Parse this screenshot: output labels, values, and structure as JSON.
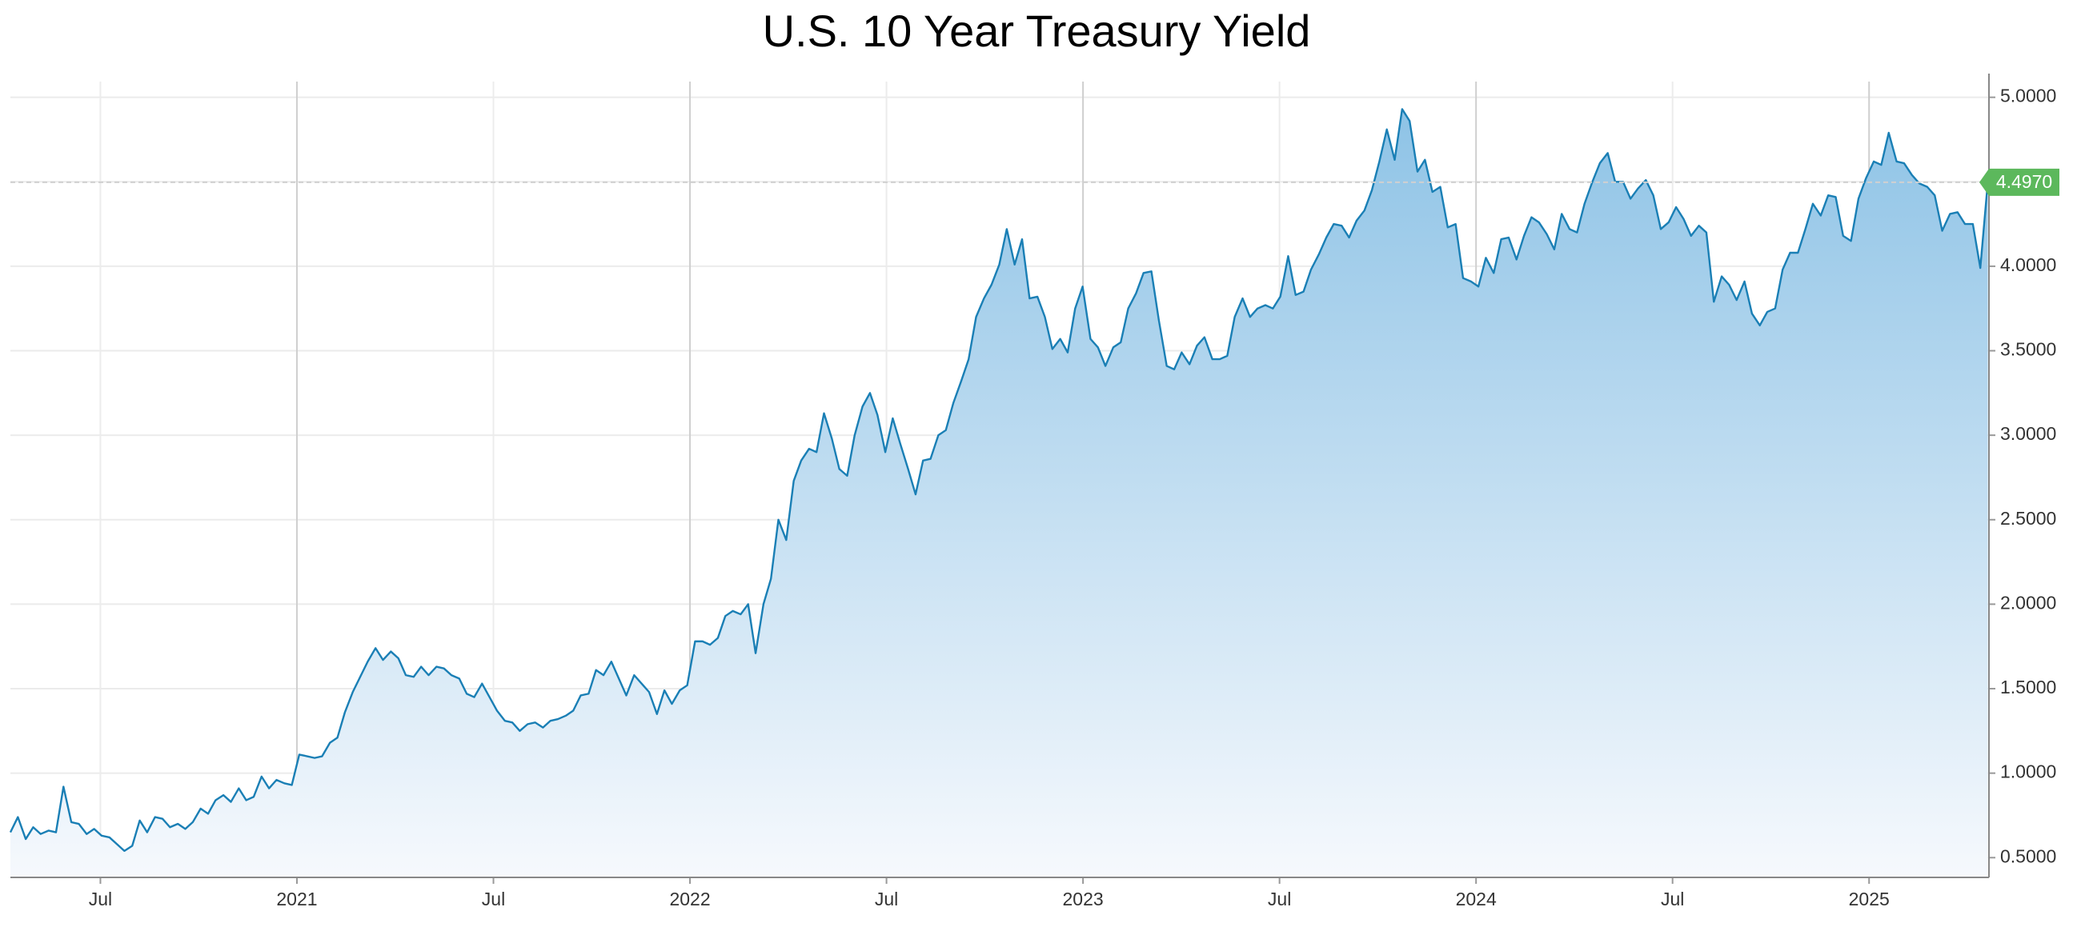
{
  "chart_data": {
    "type": "area",
    "title": "U.S. 10 Year Treasury Yield",
    "x": [
      2020.271,
      2020.29,
      2020.31,
      2020.329,
      2020.348,
      2020.368,
      2020.387,
      2020.406,
      2020.426,
      2020.445,
      2020.465,
      2020.484,
      2020.503,
      2020.523,
      2020.542,
      2020.561,
      2020.581,
      2020.6,
      2020.619,
      2020.639,
      2020.658,
      2020.677,
      2020.697,
      2020.716,
      2020.735,
      2020.755,
      2020.774,
      2020.793,
      2020.813,
      2020.832,
      2020.852,
      2020.871,
      2020.89,
      2020.91,
      2020.929,
      2020.948,
      2020.968,
      2020.987,
      2021.006,
      2021.026,
      2021.045,
      2021.064,
      2021.084,
      2021.103,
      2021.122,
      2021.142,
      2021.161,
      2021.18,
      2021.2,
      2021.219,
      2021.239,
      2021.258,
      2021.277,
      2021.297,
      2021.316,
      2021.335,
      2021.355,
      2021.374,
      2021.393,
      2021.413,
      2021.432,
      2021.451,
      2021.471,
      2021.49,
      2021.509,
      2021.529,
      2021.548,
      2021.567,
      2021.587,
      2021.606,
      2021.626,
      2021.645,
      2021.664,
      2021.684,
      2021.703,
      2021.722,
      2021.742,
      2021.761,
      2021.78,
      2021.8,
      2021.819,
      2021.838,
      2021.858,
      2021.877,
      2021.896,
      2021.916,
      2021.935,
      2021.954,
      2021.974,
      2021.993,
      2022.013,
      2022.032,
      2022.051,
      2022.071,
      2022.09,
      2022.109,
      2022.129,
      2022.148,
      2022.167,
      2022.187,
      2022.206,
      2022.225,
      2022.245,
      2022.264,
      2022.283,
      2022.303,
      2022.322,
      2022.341,
      2022.361,
      2022.38,
      2022.4,
      2022.419,
      2022.439,
      2022.458,
      2022.477,
      2022.497,
      2022.516,
      2022.535,
      2022.555,
      2022.574,
      2022.593,
      2022.612,
      2022.632,
      2022.651,
      2022.67,
      2022.69,
      2022.709,
      2022.728,
      2022.748,
      2022.767,
      2022.787,
      2022.806,
      2022.826,
      2022.845,
      2022.864,
      2022.884,
      2022.903,
      2022.922,
      2022.942,
      2022.961,
      2022.98,
      2022.999,
      2023.019,
      2023.038,
      2023.057,
      2023.077,
      2023.096,
      2023.115,
      2023.135,
      2023.154,
      2023.174,
      2023.193,
      2023.213,
      2023.232,
      2023.251,
      2023.271,
      2023.29,
      2023.309,
      2023.329,
      2023.348,
      2023.367,
      2023.386,
      2023.406,
      2023.425,
      2023.444,
      2023.464,
      2023.483,
      2023.502,
      2023.522,
      2023.541,
      2023.561,
      2023.58,
      2023.6,
      2023.619,
      2023.638,
      2023.658,
      2023.677,
      2023.696,
      2023.716,
      2023.735,
      2023.754,
      2023.773,
      2023.793,
      2023.812,
      2023.831,
      2023.851,
      2023.87,
      2023.889,
      2023.909,
      2023.928,
      2023.948,
      2023.967,
      2023.987,
      2024.006,
      2024.025,
      2024.045,
      2024.064,
      2024.083,
      2024.103,
      2024.122,
      2024.141,
      2024.16,
      2024.18,
      2024.199,
      2024.218,
      2024.238,
      2024.257,
      2024.276,
      2024.296,
      2024.315,
      2024.335,
      2024.354,
      2024.374,
      2024.393,
      2024.412,
      2024.432,
      2024.451,
      2024.47,
      2024.49,
      2024.509,
      2024.528,
      2024.547,
      2024.567,
      2024.586,
      2024.605,
      2024.625,
      2024.644,
      2024.663,
      2024.683,
      2024.702,
      2024.722,
      2024.741,
      2024.761,
      2024.78,
      2024.799,
      2024.819,
      2024.838,
      2024.857,
      2024.877,
      2024.896,
      2024.915,
      2024.934,
      2024.954,
      2024.973,
      2024.992,
      2025.012,
      2025.031,
      2025.05,
      2025.07,
      2025.089,
      2025.109,
      2025.128,
      2025.148,
      2025.167,
      2025.186,
      2025.206,
      2025.225,
      2025.244,
      2025.264,
      2025.283,
      2025.302
    ],
    "series": [
      {
        "color": "#1a7fb5",
        "values": [
          0.65,
          0.74,
          0.61,
          0.68,
          0.64,
          0.66,
          0.65,
          0.92,
          0.71,
          0.7,
          0.64,
          0.67,
          0.63,
          0.62,
          0.58,
          0.54,
          0.57,
          0.72,
          0.65,
          0.74,
          0.73,
          0.68,
          0.7,
          0.67,
          0.71,
          0.79,
          0.76,
          0.84,
          0.87,
          0.83,
          0.91,
          0.84,
          0.86,
          0.98,
          0.91,
          0.96,
          0.94,
          0.93,
          1.11,
          1.1,
          1.09,
          1.1,
          1.18,
          1.21,
          1.36,
          1.48,
          1.57,
          1.66,
          1.74,
          1.67,
          1.72,
          1.68,
          1.58,
          1.57,
          1.63,
          1.58,
          1.63,
          1.62,
          1.58,
          1.56,
          1.47,
          1.45,
          1.53,
          1.45,
          1.37,
          1.31,
          1.3,
          1.25,
          1.29,
          1.3,
          1.27,
          1.31,
          1.32,
          1.34,
          1.37,
          1.46,
          1.47,
          1.61,
          1.58,
          1.66,
          1.56,
          1.46,
          1.58,
          1.53,
          1.48,
          1.35,
          1.49,
          1.41,
          1.49,
          1.52,
          1.78,
          1.78,
          1.76,
          1.8,
          1.93,
          1.96,
          1.94,
          2.0,
          1.71,
          2.0,
          2.15,
          2.5,
          2.38,
          2.73,
          2.85,
          2.92,
          2.9,
          3.13,
          2.98,
          2.8,
          2.76,
          3.0,
          3.17,
          3.25,
          3.12,
          2.9,
          3.1,
          2.95,
          2.8,
          2.65,
          2.85,
          2.86,
          3.0,
          3.03,
          3.19,
          3.32,
          3.45,
          3.7,
          3.81,
          3.89,
          4.01,
          4.22,
          4.01,
          4.16,
          3.81,
          3.82,
          3.7,
          3.51,
          3.57,
          3.49,
          3.75,
          3.88,
          3.57,
          3.52,
          3.41,
          3.52,
          3.55,
          3.75,
          3.84,
          3.96,
          3.97,
          3.68,
          3.41,
          3.39,
          3.49,
          3.42,
          3.53,
          3.58,
          3.45,
          3.45,
          3.47,
          3.7,
          3.81,
          3.7,
          3.75,
          3.77,
          3.75,
          3.82,
          4.06,
          3.83,
          3.85,
          3.98,
          4.07,
          4.17,
          4.25,
          4.24,
          4.17,
          4.27,
          4.33,
          4.45,
          4.62,
          4.81,
          4.63,
          4.93,
          4.86,
          4.56,
          4.63,
          4.44,
          4.47,
          4.23,
          4.25,
          3.93,
          3.91,
          3.88,
          4.05,
          3.96,
          4.16,
          4.17,
          4.04,
          4.18,
          4.29,
          4.26,
          4.19,
          4.1,
          4.31,
          4.22,
          4.2,
          4.37,
          4.5,
          4.61,
          4.67,
          4.5,
          4.5,
          4.4,
          4.46,
          4.51,
          4.42,
          4.22,
          4.26,
          4.35,
          4.28,
          4.18,
          4.24,
          4.2,
          3.79,
          3.94,
          3.89,
          3.8,
          3.91,
          3.72,
          3.65,
          3.73,
          3.75,
          3.98,
          4.08,
          4.08,
          4.22,
          4.37,
          4.3,
          4.42,
          4.41,
          4.18,
          4.15,
          4.4,
          4.52,
          4.62,
          4.6,
          4.79,
          4.62,
          4.61,
          4.54,
          4.49,
          4.47,
          4.42,
          4.21,
          4.31,
          4.32,
          4.25,
          4.25,
          3.99,
          4.497
        ]
      }
    ],
    "xlim": [
      2020.271,
      2025.305
    ],
    "xticks": [
      {
        "value": 2020.5,
        "label": "Jul"
      },
      2021,
      {
        "value": 2021.5,
        "label": "Jul"
      },
      2022,
      {
        "value": 2022.5,
        "label": "Jul"
      },
      2023,
      {
        "value": 2023.5,
        "label": "Jul"
      },
      2024,
      {
        "value": 2024.5,
        "label": "Jul"
      },
      2025
    ],
    "ylim": [
      0.383,
      5.093
    ],
    "yticks": [
      {
        "value": 0.5,
        "label": "0.5000"
      },
      {
        "value": 1,
        "label": "1.0000"
      },
      {
        "value": 1.5,
        "label": "1.5000"
      },
      {
        "value": 2,
        "label": "2.0000"
      },
      {
        "value": 2.5,
        "label": "2.5000"
      },
      {
        "value": 3,
        "label": "3.0000"
      },
      {
        "value": 3.5,
        "label": "3.5000"
      },
      {
        "value": 4,
        "label": "4.0000"
      },
      {
        "value": 4.5,
        "label": "4.5000"
      },
      {
        "value": 5,
        "label": "5.0000"
      }
    ],
    "grid": true,
    "annotation": {
      "value": 4.497,
      "label": "4.4970",
      "color": "#5cb85c"
    }
  }
}
